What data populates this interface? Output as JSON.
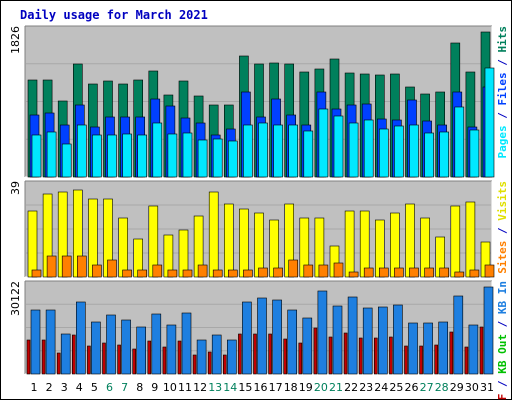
{
  "title": "Daily usage for March 2021",
  "colors": {
    "hits": "#00805c",
    "files": "#0040ff",
    "pages": "#00e8ff",
    "visits": "#ffff00",
    "sites": "#ff8000",
    "kbin": "#1e7fe0",
    "kbout": "#00c000",
    "kbf": "#c00000",
    "weekend": "#00805c",
    "title": "#0000c0"
  },
  "right_labels": {
    "top": [
      {
        "text": "Pages",
        "color": "#00e8ff"
      },
      {
        "text": " / ",
        "color": "#0000c0"
      },
      {
        "text": "Files",
        "color": "#0040ff"
      },
      {
        "text": " / ",
        "color": "#0000c0"
      },
      {
        "text": "Hits",
        "color": "#00805c"
      }
    ],
    "mid": [
      {
        "text": "Sites",
        "color": "#ff8000"
      },
      {
        "text": " / ",
        "color": "#0000c0"
      },
      {
        "text": "Visits",
        "color": "#e0e000"
      }
    ],
    "bot": [
      {
        "text": "KB F",
        "color": "#c00000"
      },
      {
        "text": " / ",
        "color": "#0000c0"
      },
      {
        "text": "KB Out",
        "color": "#00c000"
      },
      {
        "text": " / ",
        "color": "#0000c0"
      },
      {
        "text": "KB In",
        "color": "#1e7fe0"
      }
    ]
  },
  "chart_data": [
    {
      "type": "bar",
      "panel": "hits-files-pages",
      "ymax_label": "1826",
      "ylim": [
        0,
        1826
      ],
      "categories": [
        "1",
        "2",
        "3",
        "4",
        "5",
        "6",
        "7",
        "8",
        "9",
        "10",
        "11",
        "12",
        "13",
        "14",
        "15",
        "16",
        "17",
        "18",
        "19",
        "20",
        "21",
        "22",
        "23",
        "24",
        "25",
        "26",
        "27",
        "28",
        "29",
        "30",
        "31"
      ],
      "weekend_days": [
        "6",
        "7",
        "13",
        "14",
        "20",
        "21",
        "27",
        "28"
      ],
      "series": [
        {
          "name": "Hits",
          "color_key": "hits",
          "values": [
            1200,
            1200,
            940,
            1400,
            1160,
            1190,
            1150,
            1210,
            1320,
            1020,
            1190,
            1000,
            900,
            900,
            1500,
            1400,
            1420,
            1400,
            1310,
            1340,
            1460,
            1290,
            1280,
            1270,
            1280,
            1120,
            1030,
            1050,
            1660,
            1300,
            1800
          ]
        },
        {
          "name": "Files",
          "color_key": "files",
          "values": [
            770,
            790,
            640,
            890,
            620,
            750,
            740,
            740,
            970,
            880,
            730,
            670,
            520,
            600,
            1060,
            740,
            970,
            770,
            640,
            1050,
            850,
            890,
            910,
            720,
            710,
            960,
            690,
            640,
            1050,
            620,
            1120
          ]
        },
        {
          "name": "Pages",
          "color_key": "pages",
          "values": [
            520,
            560,
            410,
            640,
            520,
            520,
            530,
            520,
            670,
            540,
            550,
            460,
            470,
            450,
            640,
            670,
            650,
            650,
            570,
            840,
            760,
            670,
            710,
            600,
            630,
            640,
            550,
            560,
            870,
            590,
            1360
          ]
        }
      ]
    },
    {
      "type": "bar",
      "panel": "visits-sites",
      "ymax_label": "39",
      "ylim": [
        0,
        39
      ],
      "categories": [
        "1",
        "2",
        "3",
        "4",
        "5",
        "6",
        "7",
        "8",
        "9",
        "10",
        "11",
        "12",
        "13",
        "14",
        "15",
        "16",
        "17",
        "18",
        "19",
        "20",
        "21",
        "22",
        "23",
        "24",
        "25",
        "26",
        "27",
        "28",
        "29",
        "30",
        "31"
      ],
      "series": [
        {
          "name": "Visits",
          "color_key": "visits",
          "values": [
            28,
            35,
            36,
            37,
            33,
            33,
            25,
            16,
            30,
            18,
            20,
            26,
            36,
            31,
            29,
            27,
            24,
            31,
            25,
            25,
            13,
            28,
            28,
            24,
            27,
            31,
            25,
            17,
            30,
            32,
            15
          ]
        },
        {
          "name": "Sites",
          "color_key": "sites",
          "values": [
            3,
            9,
            9,
            9,
            5,
            7,
            3,
            3,
            5,
            3,
            3,
            5,
            3,
            3,
            3,
            4,
            4,
            7,
            5,
            5,
            6,
            2,
            4,
            4,
            4,
            4,
            4,
            4,
            2,
            3,
            5
          ]
        }
      ]
    },
    {
      "type": "bar",
      "panel": "kb",
      "ymax_label": "30122",
      "ylim": [
        0,
        30122
      ],
      "categories": [
        "1",
        "2",
        "3",
        "4",
        "5",
        "6",
        "7",
        "8",
        "9",
        "10",
        "11",
        "12",
        "13",
        "14",
        "15",
        "16",
        "17",
        "18",
        "19",
        "20",
        "21",
        "22",
        "23",
        "24",
        "25",
        "26",
        "27",
        "28",
        "29",
        "30",
        "31"
      ],
      "series": [
        {
          "name": "KB In",
          "color_key": "kbin",
          "values": [
            21700,
            21700,
            13400,
            24500,
            17700,
            19900,
            18200,
            16000,
            20300,
            16600,
            20500,
            11600,
            13300,
            11600,
            24500,
            25600,
            24900,
            21600,
            18900,
            28000,
            22900,
            26000,
            22400,
            22800,
            23300,
            17100,
            17400,
            17700,
            26400,
            16700,
            29400
          ]
        },
        {
          "name": "KB F",
          "color_key": "kbf",
          "values": [
            11400,
            11400,
            7100,
            13100,
            9400,
            10600,
            9800,
            8600,
            11000,
            9100,
            11000,
            6400,
            7300,
            6400,
            13500,
            13700,
            13500,
            11700,
            10400,
            15500,
            12500,
            14000,
            12100,
            12300,
            12500,
            9500,
            9600,
            9700,
            14300,
            9200,
            16000
          ]
        }
      ]
    }
  ]
}
